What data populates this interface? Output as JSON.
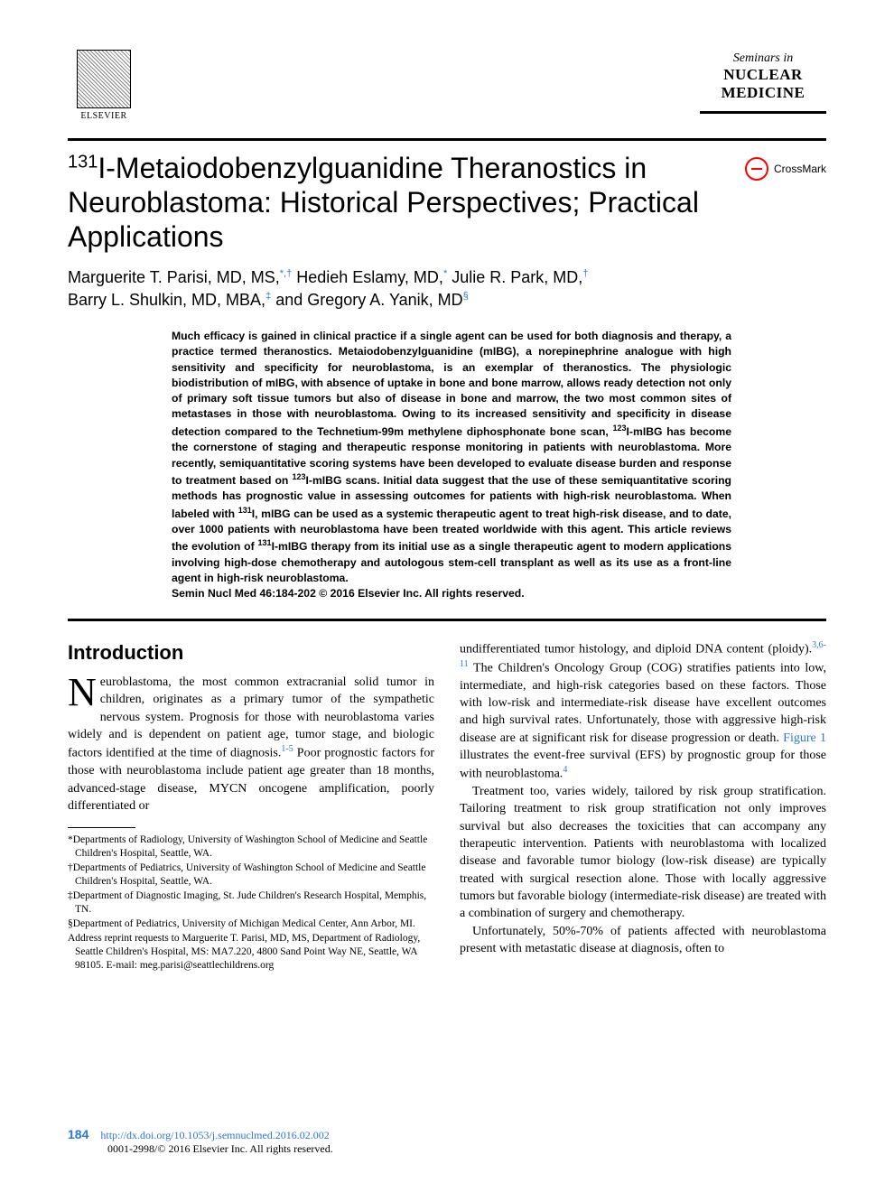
{
  "publisher": {
    "name": "ELSEVIER"
  },
  "journal": {
    "seminars": "Seminars in",
    "nuclear": "NUCLEAR",
    "medicine": "MEDICINE"
  },
  "crossmark": {
    "label": "CrossMark"
  },
  "title": {
    "sup": "131",
    "rest": "I-Metaiodobenzylguanidine Theranostics in Neuroblastoma: Historical Perspectives; Practical Applications"
  },
  "authors": {
    "a1_name": "Marguerite T. Parisi, MD, MS,",
    "a1_aff": "*,†",
    "a2_name": "Hedieh Eslamy, MD,",
    "a2_aff": "*",
    "a3_name": "Julie R. Park, MD,",
    "a3_aff": "†",
    "a4_name": "Barry L. Shulkin, MD, MBA,",
    "a4_aff": "‡",
    "and": " and ",
    "a5_name": "Gregory A. Yanik, MD",
    "a5_aff": "§"
  },
  "abstract": {
    "p1a": "Much efficacy is gained in clinical practice if a single agent can be used for both diagnosis and therapy, a practice termed theranostics. Metaiodobenzylguanidine (mIBG), a norepinephrine analogue with high sensitivity and specificity for neuroblastoma, is an exemplar of theranostics. The physiologic biodistribution of mIBG, with absence of uptake in bone and bone marrow, allows ready detection not only of primary soft tissue tumors but also of disease in bone and marrow, the two most common sites of metastases in those with neuroblastoma. Owing to its increased sensitivity and specificity in disease detection compared to the Technetium-99m methylene diphosphonate bone scan, ",
    "sup1": "123",
    "p1b": "I-mIBG has become the cornerstone of staging and therapeutic response monitoring in patients with neuroblastoma. More recently, semiquantitative scoring systems have been developed to evaluate disease burden and response to treatment based on ",
    "sup2": "123",
    "p1c": "I-mIBG scans. Initial data suggest that the use of these semiquantitative scoring methods has prognostic value in assessing outcomes for patients with high-risk neuroblastoma. When labeled with ",
    "sup3": "131",
    "p1d": "I, mIBG can be used as a systemic therapeutic agent to treat high-risk disease, and to date, over 1000 patients with neuroblastoma have been treated worldwide with this agent. This article reviews the evolution of ",
    "sup4": "131",
    "p1e": "I-mIBG therapy from its initial use as a single therapeutic agent to modern applications involving high-dose chemotherapy and autologous stem-cell transplant as well as its use as a front-line agent in high-risk neuroblastoma.",
    "citation": "Semin Nucl Med 46:184-202 © 2016 Elsevier Inc. All rights reserved."
  },
  "section": {
    "intro": "Introduction"
  },
  "body": {
    "left_p1a": "euroblastoma, the most common extracranial solid tumor in children, originates as a primary tumor of the sympathetic nervous system. Prognosis for those with neuroblastoma varies widely and is dependent on patient age, tumor stage, and biologic factors identified at the time of diagnosis.",
    "left_cite1": "1-5",
    "left_p1b": " Poor prognostic factors for those with neuroblastoma include patient age greater than 18 months, advanced-stage disease, MYCN oncogene amplification, poorly differentiated or",
    "right_p1a": "undifferentiated tumor histology, and diploid DNA content (ploidy).",
    "right_cite1": "3,6-11",
    "right_p1b": " The Children's Oncology Group (COG) stratifies patients into low, intermediate, and high-risk categories based on these factors. Those with low-risk and intermediate-risk disease have excellent outcomes and high survival rates. Unfortunately, those with aggressive high-risk disease are at significant risk for disease progression or death. ",
    "right_figref": "Figure 1",
    "right_p1c": " illustrates the event-free survival (EFS) by prognostic group for those with neuroblastoma.",
    "right_cite2": "4",
    "right_p2": "Treatment too, varies widely, tailored by risk group stratification. Tailoring treatment to risk group stratification not only improves survival but also decreases the toxicities that can accompany any therapeutic intervention. Patients with neuroblastoma with localized disease and favorable tumor biology (low-risk disease) are typically treated with surgical resection alone. Those with locally aggressive tumors but favorable biology (intermediate-risk disease) are treated with a combination of surgery and chemotherapy.",
    "right_p3": "Unfortunately, 50%-70% of patients affected with neuroblastoma present with metastatic disease at diagnosis, often to"
  },
  "affiliations": {
    "a1": "*Departments of Radiology, University of Washington School of Medicine and Seattle Children's Hospital, Seattle, WA.",
    "a2": "†Departments of Pediatrics, University of Washington School of Medicine and Seattle Children's Hospital, Seattle, WA.",
    "a3": "‡Department of Diagnostic Imaging, St. Jude Children's Research Hospital, Memphis, TN.",
    "a4": "§Department of Pediatrics, University of Michigan Medical Center, Ann Arbor, MI.",
    "a5": "Address reprint requests to Marguerite T. Parisi, MD, MS, Department of Radiology, Seattle Children's Hospital, MS: MA7.220, 4800 Sand Point Way NE, Seattle, WA 98105. E-mail: meg.parisi@seattlechildrens.org"
  },
  "footer": {
    "pagenum": "184",
    "doi": "http://dx.doi.org/10.1053/j.semnuclmed.2016.02.002",
    "copyright": "0001-2998/© 2016 Elsevier Inc. All rights reserved."
  },
  "colors": {
    "link_blue": "#2e75d6",
    "text_black": "#000000",
    "crossmark_red": "#ff0000",
    "background": "#ffffff"
  },
  "typography": {
    "title_fontsize": 32,
    "authors_fontsize": 18,
    "abstract_fontsize": 12.2,
    "body_fontsize": 14,
    "heading_fontsize": 22,
    "affiliation_fontsize": 11.5
  }
}
